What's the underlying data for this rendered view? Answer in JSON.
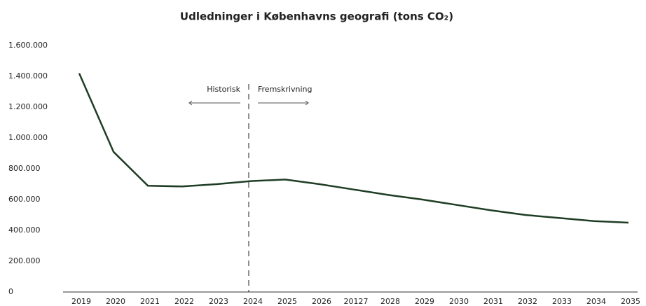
{
  "chart_data": {
    "type": "line",
    "title": "Udledninger i Københavns geografi (tons CO₂)",
    "categories": [
      "2019",
      "2020",
      "2021",
      "2022",
      "2023",
      "2024",
      "2025",
      "2026",
      "20127",
      "2028",
      "2029",
      "2030",
      "2031",
      "2032",
      "2033",
      "2034",
      "2035"
    ],
    "series": [
      {
        "name": "Udledninger",
        "color": "#1f3d25",
        "values": [
          1420000,
          910000,
          690000,
          685000,
          700000,
          720000,
          730000,
          700000,
          665000,
          630000,
          600000,
          565000,
          530000,
          500000,
          480000,
          460000,
          450000
        ]
      }
    ],
    "ylim": [
      0,
      1600000
    ],
    "yticks": [
      0,
      {
        "value": 200000,
        "label": "200.000"
      },
      {
        "value": 400000,
        "label": "400.000"
      },
      {
        "value": 600000,
        "label": "600.000"
      },
      {
        "value": 800000,
        "label": "800.000"
      },
      {
        "value": 1000000,
        "label": "1.000.000"
      },
      {
        "value": 1200000,
        "label": "1.200.000"
      },
      {
        "value": 1400000,
        "label": "1.400.000"
      },
      {
        "value": 1600000,
        "label": "1.600.000"
      }
    ],
    "annotations": [
      "Historisk",
      "Fremskrivning"
    ],
    "grid": false
  }
}
